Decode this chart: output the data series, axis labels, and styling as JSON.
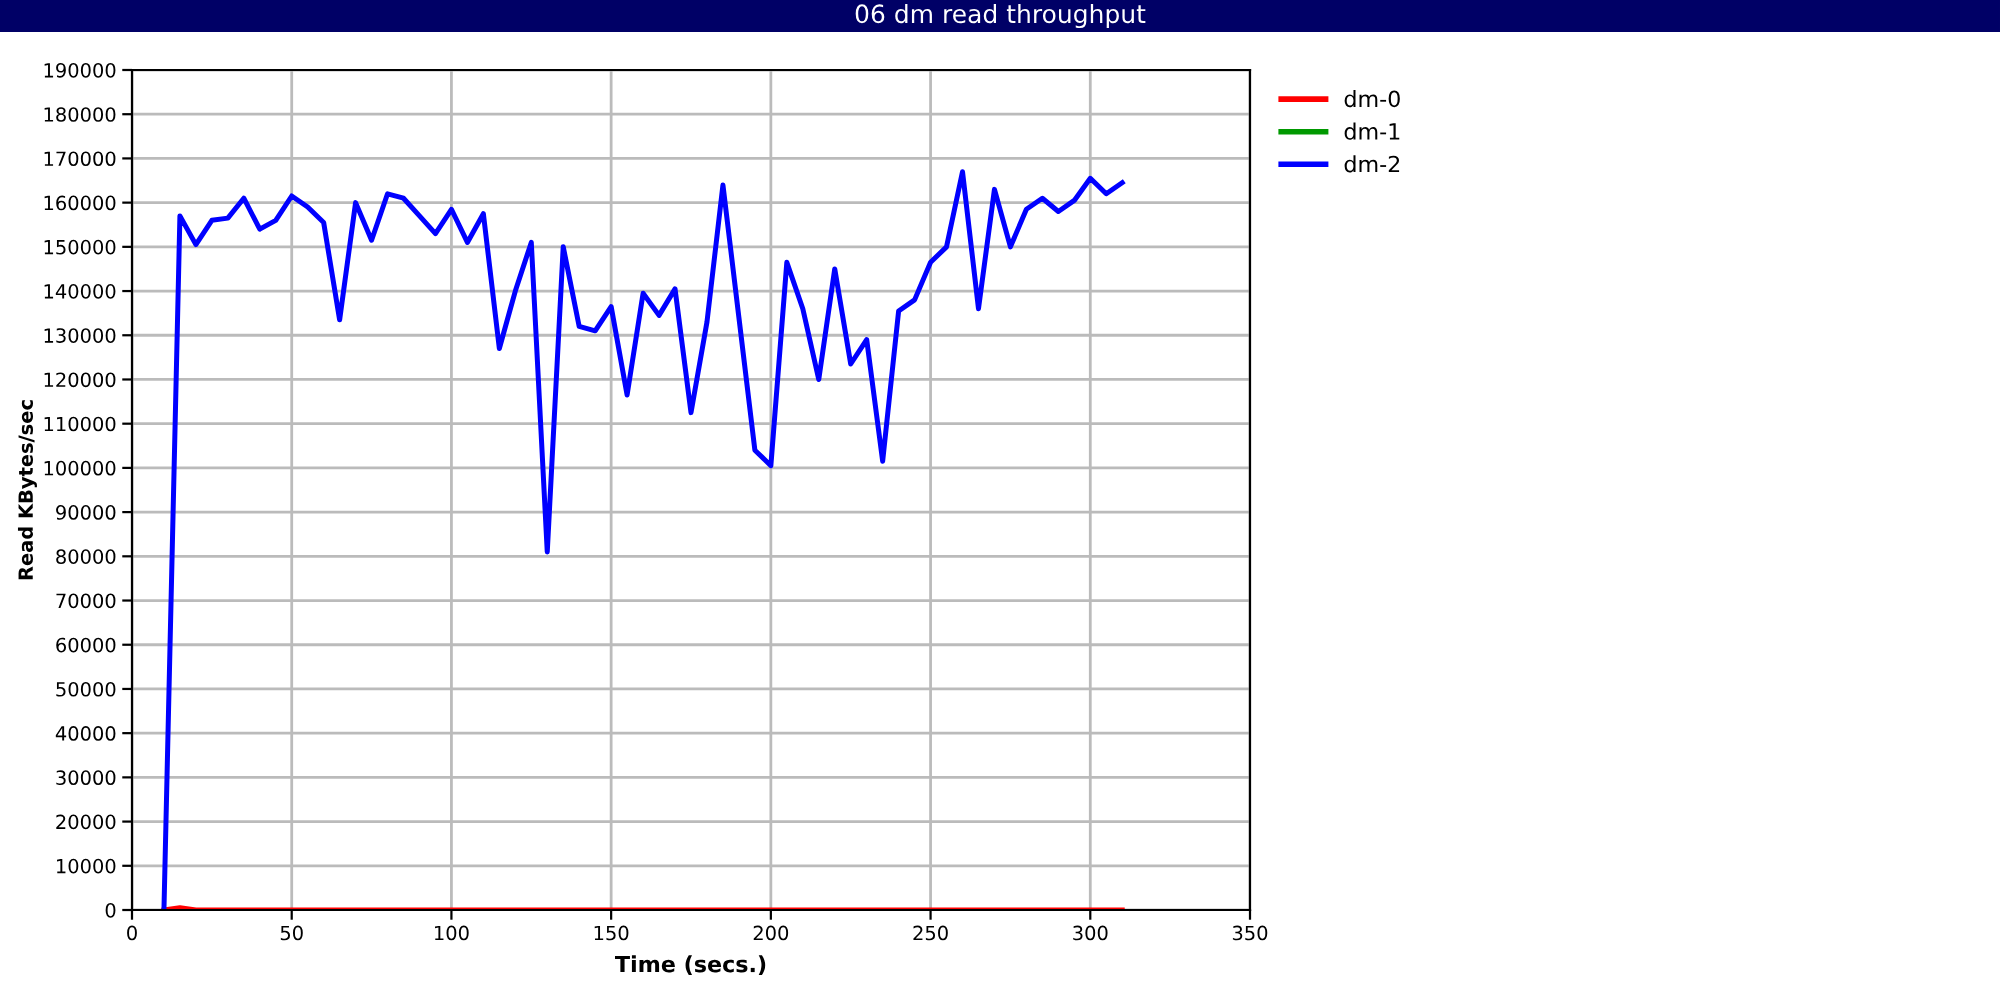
{
  "chart_data": {
    "type": "line",
    "title": "06 dm read throughput",
    "xlabel": "Time (secs.)",
    "ylabel": "Read KBytes/sec",
    "x": [
      10,
      15,
      20,
      25,
      30,
      35,
      40,
      45,
      50,
      55,
      60,
      65,
      70,
      75,
      80,
      85,
      90,
      95,
      100,
      105,
      110,
      115,
      120,
      125,
      130,
      135,
      140,
      145,
      150,
      155,
      160,
      165,
      170,
      175,
      180,
      185,
      190,
      195,
      200,
      205,
      210,
      215,
      220,
      225,
      230,
      235,
      240,
      245,
      250,
      255,
      260,
      265,
      270,
      275,
      280,
      285,
      290,
      295,
      300,
      305,
      310
    ],
    "series": [
      {
        "name": "dm-0",
        "color": "#ff0000",
        "values": [
          0,
          500,
          0,
          0,
          0,
          0,
          0,
          0,
          0,
          0,
          0,
          0,
          0,
          0,
          0,
          0,
          0,
          0,
          0,
          0,
          0,
          0,
          0,
          0,
          0,
          0,
          0,
          0,
          0,
          0,
          0,
          0,
          0,
          0,
          0,
          0,
          0,
          0,
          0,
          0,
          0,
          0,
          0,
          0,
          0,
          0,
          0,
          0,
          0,
          0,
          0,
          0,
          0,
          0,
          0,
          0,
          0,
          0,
          0,
          0,
          0
        ]
      },
      {
        "name": "dm-1",
        "color": "#009900",
        "values": [
          null,
          null,
          null,
          null,
          null,
          null,
          null,
          null,
          null,
          null,
          null,
          null,
          null,
          null,
          null,
          null,
          null,
          null,
          null,
          null,
          null,
          null,
          null,
          null,
          null,
          null,
          null,
          null,
          null,
          null,
          null,
          null,
          null,
          null,
          null,
          null,
          null,
          null,
          null,
          null,
          null,
          null,
          null,
          null,
          null,
          null,
          null,
          null,
          null,
          null,
          null,
          null,
          null,
          null,
          null,
          null,
          null,
          null,
          null,
          null,
          null
        ]
      },
      {
        "name": "dm-2",
        "color": "#0000ff",
        "values": [
          0,
          157000,
          150500,
          156000,
          156500,
          161000,
          154000,
          156000,
          161500,
          159000,
          155500,
          133500,
          160000,
          151500,
          162000,
          161000,
          157000,
          153000,
          158500,
          151000,
          157500,
          127000,
          140000,
          151000,
          81000,
          150000,
          132000,
          131000,
          136500,
          116500,
          139500,
          134500,
          140500,
          112500,
          133000,
          164000,
          134000,
          104000,
          100500,
          146500,
          136000,
          120000,
          145000,
          123500,
          129000,
          101500,
          135500,
          138000,
          146500,
          150000,
          167000,
          136000,
          163000,
          150000,
          158500,
          161000,
          158000,
          160500,
          165500,
          162000,
          164500
        ]
      }
    ],
    "xlim": [
      0,
      350
    ],
    "xticks": [
      0,
      50,
      100,
      150,
      200,
      250,
      300,
      350
    ],
    "ylim": [
      0,
      190000
    ],
    "yticks": [
      0,
      10000,
      20000,
      30000,
      40000,
      50000,
      60000,
      70000,
      80000,
      90000,
      100000,
      110000,
      120000,
      130000,
      140000,
      150000,
      160000,
      170000,
      180000,
      190000
    ],
    "grid": true,
    "legend": "top right",
    "marker": "none",
    "line_style": "solid"
  }
}
